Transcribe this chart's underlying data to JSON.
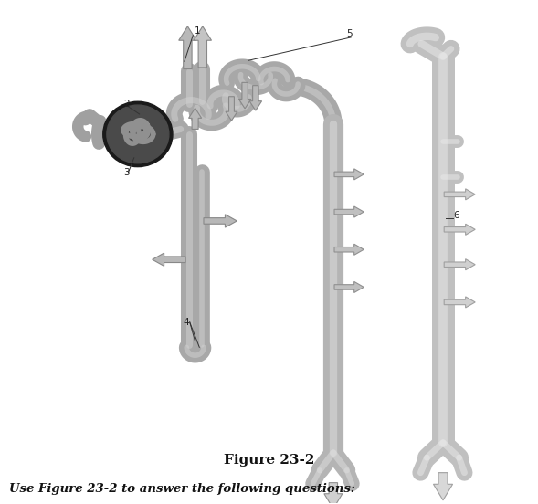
{
  "figure_label": "Figure 23-2",
  "caption": "Use Figure 23-2 to answer the following questions:",
  "bg_color": "#ffffff",
  "tube_base": "#a8a8a8",
  "tube_light": "#d0d0d0",
  "tube_dark": "#888888",
  "collect_base": "#b8b8b8",
  "collect_light": "#e0e0e0",
  "arrow_fill": "#c0c0c0",
  "arrow_edge": "#909090",
  "label_color": "#222222",
  "glom_dark": "#1a1a1a",
  "glom_mid": "#4a4a4a",
  "glom_cap": "#7a7a7a"
}
